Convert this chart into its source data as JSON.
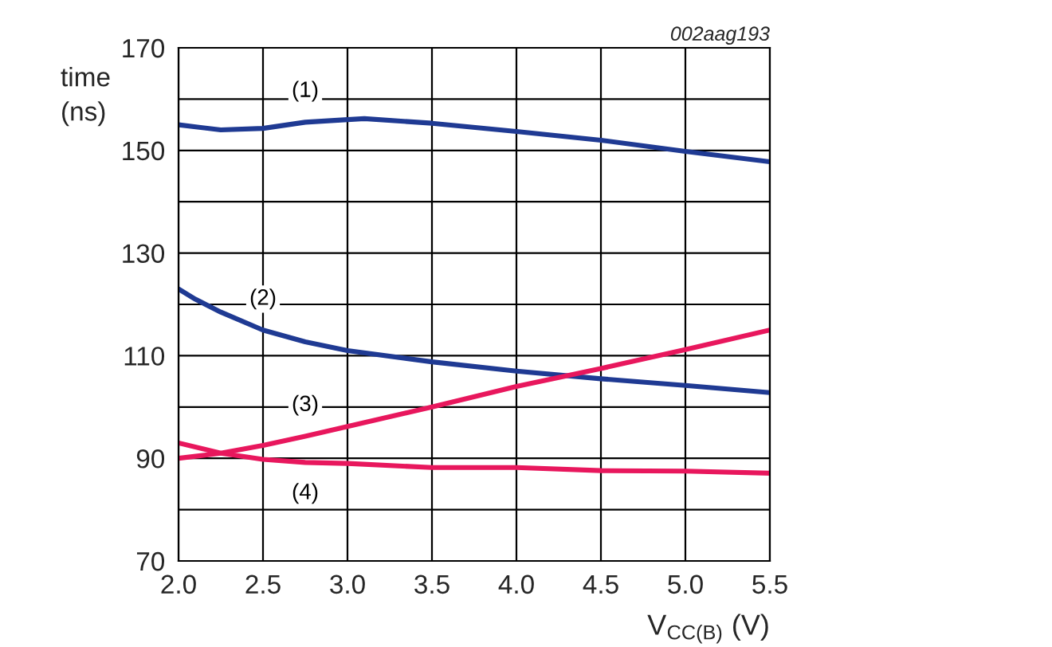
{
  "chart_data": {
    "type": "line",
    "ylabel": "time\n(ns)",
    "xlabel": "V$_{CC(B)}$ (V)",
    "xlim": [
      2.0,
      5.5
    ],
    "xticks": [
      {
        "value": 2.0,
        "label": "2.0"
      },
      {
        "value": 2.5,
        "label": "2.5"
      },
      {
        "value": 3.0,
        "label": "3.0"
      },
      {
        "value": 3.5,
        "label": "3.5"
      },
      {
        "value": 4.0,
        "label": "4.0"
      },
      {
        "value": 4.5,
        "label": "4.5"
      },
      {
        "value": 5.0,
        "label": "5.0"
      },
      {
        "value": 5.5,
        "label": "5.5"
      }
    ],
    "ylim": [
      70,
      170
    ],
    "yticks": [
      70,
      {
        "value": 80,
        "label": null
      },
      90,
      {
        "value": 100,
        "label": null
      },
      110,
      {
        "value": 120,
        "label": null
      },
      130,
      {
        "value": 140,
        "label": null
      },
      150,
      {
        "value": 160,
        "label": null
      },
      170
    ],
    "grid": true,
    "legend": false,
    "line_style": "solid",
    "marker": "none",
    "series": [
      {
        "name": "(1)",
        "color": "#1f3a93",
        "x": [
          2.0,
          2.25,
          2.5,
          2.75,
          3.0,
          3.1,
          3.5,
          4.0,
          4.5,
          5.0,
          5.5
        ],
        "values": [
          155,
          154,
          154.3,
          155.5,
          156,
          156.2,
          155.3,
          153.7,
          152,
          149.8,
          147.8
        ]
      },
      {
        "name": "(2)",
        "color": "#1f3a93",
        "x": [
          2.0,
          2.1,
          2.25,
          2.5,
          2.75,
          3.0,
          3.5,
          4.0,
          4.5,
          5.0,
          5.5
        ],
        "values": [
          123,
          121,
          118.5,
          115,
          112.7,
          111,
          108.8,
          107,
          105.5,
          104.2,
          102.8
        ]
      },
      {
        "name": "(3)",
        "color": "#e8175d",
        "x": [
          2.0,
          2.25,
          2.5,
          2.75,
          3.0,
          3.5,
          4.0,
          4.5,
          5.0,
          5.5
        ],
        "values": [
          90,
          91,
          92.5,
          94.3,
          96.2,
          100,
          104,
          107.5,
          111.2,
          115
        ]
      },
      {
        "name": "(4)",
        "color": "#e8175d",
        "x": [
          2.0,
          2.25,
          2.5,
          2.75,
          3.0,
          3.5,
          4.0,
          4.5,
          5.0,
          5.5
        ],
        "values": [
          93,
          91,
          89.8,
          89.2,
          89,
          88.2,
          88.2,
          87.6,
          87.5,
          87.1
        ]
      }
    ],
    "annotations": [
      "002aag193"
    ]
  }
}
